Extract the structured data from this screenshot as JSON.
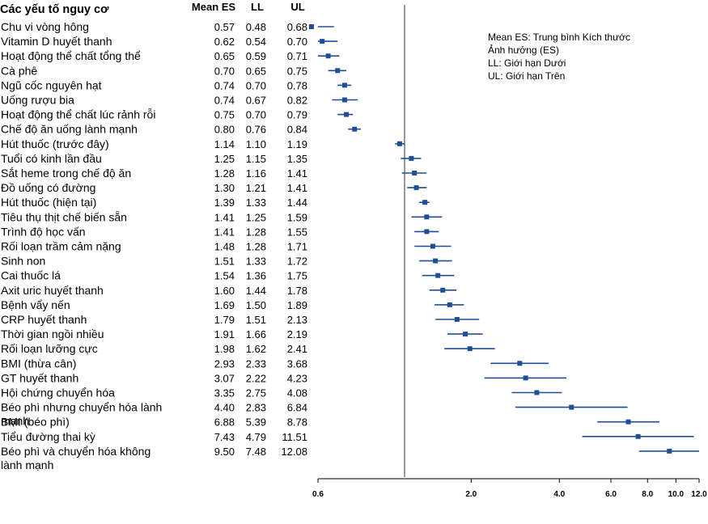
{
  "chart_data": {
    "type": "forest",
    "title": "Các yếu tố nguy cơ",
    "column_headers": [
      "Mean ES",
      "LL",
      "UL"
    ],
    "x_scale": "log",
    "x_ticks": [
      "0.6",
      "2.0",
      "4.0",
      "6.0",
      "8.0",
      "10.0",
      "12.0"
    ],
    "xlim": [
      0.6,
      12.0
    ],
    "reference_value": 1.0,
    "legend": [
      "Mean ES: Trung bình Kích thước",
      "Ảnh hưởng (ES)",
      "LL: Giới hạn Dưới",
      "UL: Giới hạn Trên"
    ],
    "rows": [
      {
        "label": "Chu vi vòng hông",
        "es": 0.57,
        "ll": 0.48,
        "ul": 0.68
      },
      {
        "label": "Vitamin D huyết thanh",
        "es": 0.62,
        "ll": 0.54,
        "ul": 0.7
      },
      {
        "label": "Hoạt động thể chất tổng thể",
        "es": 0.65,
        "ll": 0.59,
        "ul": 0.71
      },
      {
        "label": "Cà phê",
        "es": 0.7,
        "ll": 0.65,
        "ul": 0.75
      },
      {
        "label": "Ngũ cốc nguyên hạt",
        "es": 0.74,
        "ll": 0.7,
        "ul": 0.78
      },
      {
        "label": "Uống rượu bia",
        "es": 0.74,
        "ll": 0.67,
        "ul": 0.82
      },
      {
        "label": "Hoạt động thể chất lúc rảnh rỗi",
        "es": 0.75,
        "ll": 0.7,
        "ul": 0.79
      },
      {
        "label": "Chế độ ăn uống lành mạnh",
        "es": 0.8,
        "ll": 0.76,
        "ul": 0.84
      },
      {
        "label": "Hút thuốc (trước đây)",
        "es": 1.14,
        "ll": 1.1,
        "ul": 1.19
      },
      {
        "label": "Tuổi có kinh lần đầu",
        "es": 1.25,
        "ll": 1.15,
        "ul": 1.35
      },
      {
        "label": "Sắt heme trong chế độ ăn",
        "es": 1.28,
        "ll": 1.16,
        "ul": 1.41
      },
      {
        "label": "Đồ uống có đường",
        "es": 1.3,
        "ll": 1.21,
        "ul": 1.41
      },
      {
        "label": "Hút thuốc (hiện tại)",
        "es": 1.39,
        "ll": 1.33,
        "ul": 1.44
      },
      {
        "label": "Tiêu thụ thịt chế biến sẵn",
        "es": 1.41,
        "ll": 1.25,
        "ul": 1.59
      },
      {
        "label": "Trình độ học vấn",
        "es": 1.41,
        "ll": 1.28,
        "ul": 1.55
      },
      {
        "label": "Rối loạn trầm cảm nặng",
        "es": 1.48,
        "ll": 1.28,
        "ul": 1.71
      },
      {
        "label": "Sinh non",
        "es": 1.51,
        "ll": 1.33,
        "ul": 1.72
      },
      {
        "label": "Cai thuốc lá",
        "es": 1.54,
        "ll": 1.36,
        "ul": 1.75
      },
      {
        "label": "Axit uric huyết thanh",
        "es": 1.6,
        "ll": 1.44,
        "ul": 1.78
      },
      {
        "label": "Bệnh vẩy nến",
        "es": 1.69,
        "ll": 1.5,
        "ul": 1.89
      },
      {
        "label": "CRP huyết thanh",
        "es": 1.79,
        "ll": 1.51,
        "ul": 2.13
      },
      {
        "label": "Thời gian ngồi nhiều",
        "es": 1.91,
        "ll": 1.66,
        "ul": 2.19
      },
      {
        "label": "Rối loạn lưỡng cực",
        "es": 1.98,
        "ll": 1.62,
        "ul": 2.41
      },
      {
        "label": "BMI (thừa cân)",
        "es": 2.93,
        "ll": 2.33,
        "ul": 3.68
      },
      {
        "label": "GT huyết thanh",
        "es": 3.07,
        "ll": 2.22,
        "ul": 4.23
      },
      {
        "label": "Hội chứng chuyển hóa",
        "es": 3.35,
        "ll": 2.75,
        "ul": 4.08
      },
      {
        "label": "Béo phì nhưng chuyển hóa lành mạnh",
        "es": 4.4,
        "ll": 2.83,
        "ul": 6.84
      },
      {
        "label": "BMI (béo phì)",
        "es": 6.88,
        "ll": 5.39,
        "ul": 8.78
      },
      {
        "label": "Tiểu đường thai kỳ",
        "es": 7.43,
        "ll": 4.79,
        "ul": 11.51
      },
      {
        "label": "Béo phì và chuyển hóa không lành mạnh",
        "es": 9.5,
        "ll": 7.48,
        "ul": 12.08
      }
    ]
  }
}
